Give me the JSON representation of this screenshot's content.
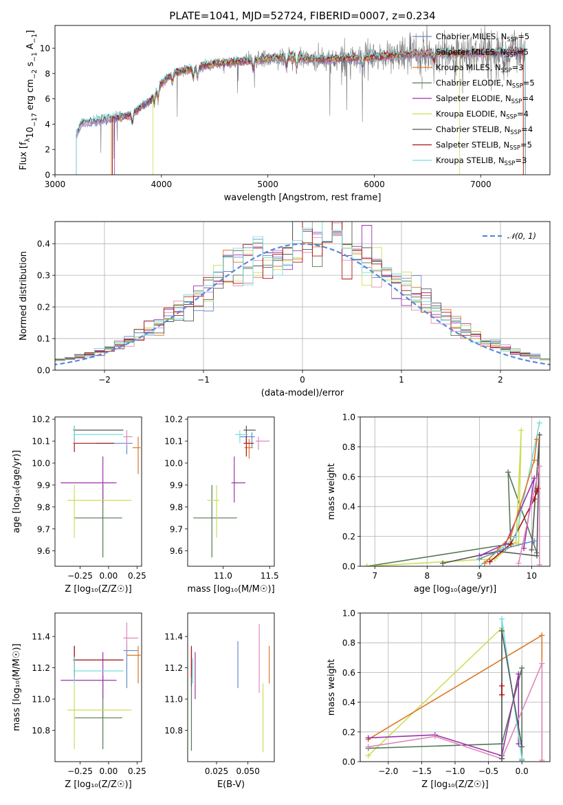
{
  "colors": {
    "Chabrier MILES": "#6688cc",
    "Salpeter MILES": "#dd88bb",
    "Kroupa MILES": "#dd7722",
    "Chabrier ELODIE": "#557755",
    "Salpeter ELODIE": "#9933aa",
    "Kroupa ELODIE": "#ccdd55",
    "Chabrier STELIB": "#555555",
    "Salpeter STELIB": "#aa1111",
    "Kroupa STELIB": "#77dddd",
    "data": "#777777",
    "normal": "#5588dd",
    "grid": "#b0b0b0"
  },
  "chart_data": [
    {
      "id": "spectrum",
      "type": "line",
      "title": "PLATE=1041, MJD=52724, FIBERID=0007, z=0.234",
      "xlabel": "wavelength [Angstrom, rest frame]",
      "ylabel_main": "Flux [f",
      "ylabel_sub": "λ",
      "ylabel_rest": "10",
      "ylabel_sup1": "−17",
      "ylabel_tail": " erg cm",
      "ylabel_sup2": "−2",
      "ylabel_tail2": " s",
      "ylabel_sup3": "−1",
      "ylabel_tail3": " A",
      "ylabel_sup4": "−1",
      "ylabel_end": "]",
      "xlim": [
        3000,
        7650
      ],
      "ylim": [
        0,
        11.8
      ],
      "xticks": [
        3000,
        4000,
        5000,
        6000,
        7000
      ],
      "yticks": [
        0,
        2,
        4,
        6,
        8,
        10
      ],
      "continuum": [
        [
          3200,
          3.1
        ],
        [
          3250,
          4.1
        ],
        [
          3400,
          4.3
        ],
        [
          3550,
          4.5
        ],
        [
          3700,
          4.7
        ],
        [
          3800,
          5.3
        ],
        [
          3900,
          5.9
        ],
        [
          3950,
          6.6
        ],
        [
          4000,
          7.2
        ],
        [
          4100,
          8.0
        ],
        [
          4300,
          8.4
        ],
        [
          4500,
          8.8
        ],
        [
          4800,
          9.0
        ],
        [
          5000,
          9.2
        ],
        [
          5200,
          9.3
        ],
        [
          5500,
          9.1
        ],
        [
          5800,
          9.2
        ],
        [
          6000,
          9.3
        ],
        [
          6300,
          9.5
        ],
        [
          6600,
          9.6
        ],
        [
          7000,
          9.6
        ],
        [
          7400,
          9.8
        ]
      ],
      "legend": [
        {
          "name": "Chabrier MILES",
          "n": "5"
        },
        {
          "name": "Salpeter MILES",
          "n": "5"
        },
        {
          "name": "Kroupa MILES",
          "n": "3"
        },
        {
          "name": "Chabrier ELODIE",
          "n": "5"
        },
        {
          "name": "Salpeter ELODIE",
          "n": "4"
        },
        {
          "name": "Kroupa ELODIE",
          "n": "4"
        },
        {
          "name": "Chabrier STELIB",
          "n": "4"
        },
        {
          "name": "Salpeter STELIB",
          "n": "5"
        },
        {
          "name": "Kroupa STELIB",
          "n": "3"
        }
      ],
      "legend_nssp": "N",
      "legend_nssp_sub": "SSP",
      "legend_location": "right"
    },
    {
      "id": "residuals",
      "type": "histogram",
      "xlabel": "(data-model)/error",
      "ylabel": "Normed distribution",
      "xlim": [
        -2.5,
        2.5
      ],
      "ylim": [
        0,
        0.47
      ],
      "xticks": [
        -2,
        -1,
        0,
        1,
        2
      ],
      "xtick_labels": [
        "−2",
        "−1",
        "0",
        "1",
        "2"
      ],
      "yticks": [
        0.0,
        0.1,
        0.2,
        0.3,
        0.4
      ],
      "ytick_labels": [
        "0.0",
        "0.1",
        "0.2",
        "0.3",
        "0.4"
      ],
      "bin_width": 0.1,
      "legend": [
        "𝒩(0, 1)"
      ],
      "legend_location": "upper right"
    },
    {
      "id": "age-vs-Z",
      "type": "errorbar",
      "xlabel": "Z [log₁₀(Z/Z☉)]",
      "ylabel": "age  [log₁₀(age/yr)]",
      "xlim": [
        -0.47,
        0.29
      ],
      "ylim": [
        9.53,
        10.21
      ],
      "xticks": [
        -0.25,
        0.0,
        0.25
      ],
      "xtick_labels": [
        "−0.25",
        "0.00",
        "0.25"
      ],
      "yticks": [
        9.6,
        9.7,
        9.8,
        9.9,
        10.0,
        10.1,
        10.2
      ],
      "ytick_labels": [
        "9.6",
        "9.7",
        "9.8",
        "9.9",
        "10.0",
        "10.1",
        "10.2"
      ],
      "points": [
        {
          "model": "Chabrier MILES",
          "x": 0.16,
          "xerr": [
            0.27,
            0.05
          ],
          "y": 10.09,
          "yerr": [
            0.05,
            0.03
          ]
        },
        {
          "model": "Salpeter MILES",
          "x": 0.16,
          "xerr": [
            0.03,
            0.05
          ],
          "y": 10.12,
          "yerr": [
            0.04,
            0.03
          ]
        },
        {
          "model": "Kroupa MILES",
          "x": 0.26,
          "xerr": [
            0.05,
            0.02
          ],
          "y": 10.07,
          "yerr": [
            0.12,
            0.05
          ]
        },
        {
          "model": "Chabrier ELODIE",
          "x": -0.05,
          "xerr": [
            0.25,
            0.17
          ],
          "y": 9.75,
          "yerr": [
            0.18,
            0.15
          ]
        },
        {
          "model": "Salpeter ELODIE",
          "x": -0.05,
          "xerr": [
            0.37,
            0.12
          ],
          "y": 9.91,
          "yerr": [
            0.09,
            0.12
          ]
        },
        {
          "model": "Kroupa ELODIE",
          "x": -0.3,
          "xerr": [
            0.06,
            0.5
          ],
          "y": 9.83,
          "yerr": [
            0.17,
            0.07
          ]
        },
        {
          "model": "Chabrier STELIB",
          "x": -0.3,
          "xerr": [
            0.01,
            0.43
          ],
          "y": 10.15,
          "yerr": [
            0.06,
            0.02
          ]
        },
        {
          "model": "Salpeter STELIB",
          "x": -0.3,
          "xerr": [
            0.01,
            0.35
          ],
          "y": 10.09,
          "yerr": [
            0.04,
            0.03
          ]
        },
        {
          "model": "Kroupa STELIB",
          "x": -0.3,
          "xerr": [
            0.01,
            0.43
          ],
          "y": 10.13,
          "yerr": [
            0.04,
            0.04
          ]
        }
      ]
    },
    {
      "id": "age-vs-mass",
      "type": "errorbar",
      "xlabel": "mass [log₁₀(M/M☉)]",
      "ylabel": "",
      "xlim": [
        10.62,
        11.55
      ],
      "ylim": [
        9.53,
        10.21
      ],
      "xticks": [
        11.0,
        11.5
      ],
      "xtick_labels": [
        "11.0",
        "11.5"
      ],
      "yticks": [
        9.6,
        9.7,
        9.8,
        9.9,
        10.0,
        10.1,
        10.2
      ],
      "ytick_labels": [
        "9.6",
        "9.7",
        "9.8",
        "9.9",
        "10.0",
        "10.1",
        "10.2"
      ],
      "points": [
        {
          "model": "Chabrier MILES",
          "x": 11.31,
          "xerr": [
            0.13,
            0.03
          ],
          "y": 10.12,
          "yerr": [
            0.05,
            0.02
          ]
        },
        {
          "model": "Salpeter MILES",
          "x": 11.38,
          "xerr": [
            0.03,
            0.12
          ],
          "y": 10.1,
          "yerr": [
            0.04,
            0.02
          ]
        },
        {
          "model": "Kroupa MILES",
          "x": 11.28,
          "xerr": [
            0.05,
            0.04
          ],
          "y": 10.07,
          "yerr": [
            0.05,
            0.04
          ]
        },
        {
          "model": "Chabrier ELODIE",
          "x": 10.88,
          "xerr": [
            0.2,
            0.27
          ],
          "y": 9.75,
          "yerr": [
            0.18,
            0.15
          ]
        },
        {
          "model": "Salpeter ELODIE",
          "x": 11.12,
          "xerr": [
            0.03,
            0.12
          ],
          "y": 9.91,
          "yerr": [
            0.09,
            0.12
          ]
        },
        {
          "model": "Kroupa ELODIE",
          "x": 10.93,
          "xerr": [
            0.1,
            0.03
          ],
          "y": 9.83,
          "yerr": [
            0.17,
            0.07
          ]
        },
        {
          "model": "Chabrier STELIB",
          "x": 11.25,
          "xerr": [
            0.03,
            0.1
          ],
          "y": 10.15,
          "yerr": [
            0.06,
            0.02
          ]
        },
        {
          "model": "Salpeter STELIB",
          "x": 11.25,
          "xerr": [
            0.03,
            0.08
          ],
          "y": 10.09,
          "yerr": [
            0.06,
            0.03
          ]
        },
        {
          "model": "Kroupa STELIB",
          "x": 11.18,
          "xerr": [
            0.05,
            0.09
          ],
          "y": 10.13,
          "yerr": [
            0.04,
            0.02
          ]
        }
      ]
    },
    {
      "id": "weight-vs-age",
      "type": "line",
      "xlabel": "age  [log₁₀(age/yr)]",
      "ylabel": "mass weight",
      "xlim": [
        6.72,
        10.35
      ],
      "ylim": [
        0,
        1.0
      ],
      "xticks": [
        7,
        8,
        9,
        10
      ],
      "xtick_labels": [
        "7",
        "8",
        "9",
        "10"
      ],
      "yticks": [
        0.0,
        0.2,
        0.4,
        0.6,
        0.8,
        1.0
      ],
      "ytick_labels": [
        "0.0",
        "0.2",
        "0.4",
        "0.6",
        "0.8",
        "1.0"
      ],
      "series": [
        {
          "model": "Chabrier ELODIE",
          "x": [
            6.85,
            9.6,
            9.55,
            10.1
          ],
          "y": [
            0.0,
            0.15,
            0.63,
            0.09
          ]
        },
        {
          "model": "Kroupa ELODIE",
          "x": [
            6.85,
            9.3,
            9.7,
            9.8,
            9.75
          ],
          "y": [
            0.0,
            0.05,
            0.16,
            0.91,
            0.15
          ]
        },
        {
          "model": "Chabrier STELIB",
          "x": [
            8.3,
            9.35,
            10.1,
            10.15,
            10.0
          ],
          "y": [
            0.02,
            0.1,
            0.07,
            0.88,
            0.11
          ]
        },
        {
          "model": "Salpeter STELIB",
          "x": [
            9.2,
            9.6,
            10.05,
            10.1,
            10.12
          ],
          "y": [
            0.03,
            0.15,
            0.45,
            0.5,
            0.52
          ]
        },
        {
          "model": "Kroupa STELIB",
          "x": [
            9.0,
            9.7,
            10.15
          ],
          "y": [
            0.0,
            0.2,
            0.96
          ]
        },
        {
          "model": "Salpeter ELODIE",
          "x": [
            9.0,
            9.5,
            10.05,
            9.85
          ],
          "y": [
            0.07,
            0.15,
            0.59,
            0.12
          ]
        },
        {
          "model": "Kroupa MILES",
          "x": [
            9.1,
            9.6,
            10.05,
            10.1
          ],
          "y": [
            0.02,
            0.2,
            0.71,
            0.85
          ]
        },
        {
          "model": "Salpeter MILES",
          "x": [
            9.75,
            10.15,
            10.15
          ],
          "y": [
            0.02,
            0.67,
            0.01
          ]
        },
        {
          "model": "Chabrier MILES",
          "x": [
            9.0,
            9.5,
            10.05
          ],
          "y": [
            0.05,
            0.12,
            0.17
          ]
        }
      ]
    },
    {
      "id": "mass-vs-Z",
      "type": "errorbar",
      "xlabel": "Z [log₁₀(Z/Z☉)]",
      "ylabel": "mass [log₁₀(M/M☉)]",
      "xlim": [
        -0.47,
        0.29
      ],
      "ylim": [
        10.6,
        11.55
      ],
      "xticks": [
        -0.25,
        0.0,
        0.25
      ],
      "xtick_labels": [
        "−0.25",
        "0.00",
        "0.25"
      ],
      "yticks": [
        10.8,
        11.0,
        11.2,
        11.4
      ],
      "ytick_labels": [
        "10.8",
        "11.0",
        "11.2",
        "11.4"
      ],
      "points": [
        {
          "model": "Chabrier MILES",
          "x": 0.16,
          "xerr": [
            0.03,
            0.1
          ],
          "y": 11.31,
          "yerr": [
            0.24,
            0.06
          ]
        },
        {
          "model": "Salpeter MILES",
          "x": 0.16,
          "xerr": [
            0.03,
            0.1
          ],
          "y": 11.39,
          "yerr": [
            0.08,
            0.1
          ]
        },
        {
          "model": "Kroupa MILES",
          "x": 0.26,
          "xerr": [
            0.1,
            0.02
          ],
          "y": 11.28,
          "yerr": [
            0.18,
            0.06
          ]
        },
        {
          "model": "Chabrier ELODIE",
          "x": -0.05,
          "xerr": [
            0.25,
            0.17
          ],
          "y": 10.88,
          "yerr": [
            0.2,
            0.27
          ]
        },
        {
          "model": "Salpeter ELODIE",
          "x": -0.05,
          "xerr": [
            0.37,
            0.12
          ],
          "y": 11.12,
          "yerr": [
            0.12,
            0.18
          ]
        },
        {
          "model": "Kroupa ELODIE",
          "x": -0.3,
          "xerr": [
            0.06,
            0.5
          ],
          "y": 10.93,
          "yerr": [
            0.25,
            0.17
          ]
        },
        {
          "model": "Chabrier STELIB",
          "x": -0.3,
          "xerr": [
            0.01,
            0.43
          ],
          "y": 11.25,
          "yerr": [
            0.13,
            0.09
          ]
        },
        {
          "model": "Salpeter STELIB",
          "x": -0.3,
          "xerr": [
            0.01,
            0.43
          ],
          "y": 11.25,
          "yerr": [
            0.1,
            0.09
          ]
        },
        {
          "model": "Kroupa STELIB",
          "x": -0.3,
          "xerr": [
            0.01,
            0.43
          ],
          "y": 11.18,
          "yerr": [
            0.08,
            0.09
          ]
        }
      ]
    },
    {
      "id": "mass-vs-ebv",
      "type": "errorbar",
      "xlabel": "E(B-V)",
      "ylabel": "",
      "xlim": [
        0.002,
        0.071
      ],
      "ylim": [
        10.6,
        11.55
      ],
      "xticks": [
        0.025,
        0.05
      ],
      "xtick_labels": [
        "0.025",
        "0.050"
      ],
      "yticks": [
        10.8,
        11.0,
        11.2,
        11.4
      ],
      "ytick_labels": [
        "10.8",
        "11.0",
        "11.2",
        "11.4"
      ],
      "points": [
        {
          "model": "Chabrier MILES",
          "x": 0.042,
          "y": 11.22,
          "yerr": [
            0.15,
            0.15
          ]
        },
        {
          "model": "Salpeter MILES",
          "x": 0.059,
          "y": 11.26,
          "yerr": [
            0.22,
            0.22
          ]
        },
        {
          "model": "Kroupa MILES",
          "x": 0.067,
          "y": 11.22,
          "yerr": [
            0.12,
            0.12
          ]
        },
        {
          "model": "Chabrier ELODIE",
          "x": 0.005,
          "y": 10.97,
          "yerr": [
            0.3,
            0.3
          ]
        },
        {
          "model": "Salpeter ELODIE",
          "x": 0.008,
          "y": 11.12,
          "yerr": [
            0.12,
            0.18
          ]
        },
        {
          "model": "Kroupa ELODIE",
          "x": 0.062,
          "y": 10.88,
          "yerr": [
            0.22,
            0.22
          ]
        },
        {
          "model": "Chabrier STELIB",
          "x": 0.005,
          "y": 11.2,
          "yerr": [
            0.12,
            0.12
          ]
        },
        {
          "model": "Salpeter STELIB",
          "x": 0.005,
          "y": 11.24,
          "yerr": [
            0.1,
            0.1
          ]
        },
        {
          "model": "Kroupa STELIB",
          "x": 0.006,
          "y": 11.18,
          "yerr": [
            0.08,
            0.08
          ]
        }
      ]
    },
    {
      "id": "weight-vs-Z",
      "type": "line",
      "xlabel": "Z [log₁₀(Z/Z☉)]",
      "ylabel": "mass weight",
      "xlim": [
        -2.42,
        0.42
      ],
      "ylim": [
        0,
        1.0
      ],
      "xticks": [
        -2.0,
        -1.5,
        -1.0,
        -0.5,
        0.0
      ],
      "xtick_labels": [
        "−2.0",
        "−1.5",
        "−1.0",
        "−0.5",
        "0.0"
      ],
      "yticks": [
        0.0,
        0.2,
        0.4,
        0.6,
        0.8,
        1.0
      ],
      "ytick_labels": [
        "0.0",
        "0.2",
        "0.4",
        "0.6",
        "0.8",
        "1.0"
      ],
      "series": [
        {
          "model": "Kroupa ELODIE",
          "x": [
            -2.3,
            -0.3,
            -0.3
          ],
          "y": [
            0.04,
            0.9,
            0.0
          ]
        },
        {
          "model": "Kroupa MILES",
          "x": [
            -2.3,
            0.3,
            0.3
          ],
          "y": [
            0.15,
            0.85,
            0.0
          ]
        },
        {
          "model": "Chabrier ELODIE",
          "x": [
            -2.3,
            -0.3,
            0.0,
            0.0
          ],
          "y": [
            0.09,
            0.12,
            0.63,
            0.01
          ]
        },
        {
          "model": "Salpeter ELODIE",
          "x": [
            -2.3,
            -1.3,
            -0.3,
            -0.05,
            -0.05
          ],
          "y": [
            0.16,
            0.18,
            0.04,
            0.59,
            0.12
          ]
        },
        {
          "model": "Salpeter MILES",
          "x": [
            -2.3,
            -1.3,
            -0.3,
            0.3,
            0.3
          ],
          "y": [
            0.1,
            0.17,
            0.02,
            0.66,
            0.01
          ]
        },
        {
          "model": "Kroupa STELIB",
          "x": [
            -0.3,
            -0.3,
            0.0
          ],
          "y": [
            0.0,
            0.96,
            0.02
          ]
        },
        {
          "model": "Chabrier STELIB",
          "x": [
            -0.3,
            -0.3,
            0.0
          ],
          "y": [
            0.02,
            0.88,
            0.1
          ]
        },
        {
          "model": "Salpeter STELIB",
          "x": [
            -0.3,
            -0.3
          ],
          "y": [
            0.45,
            0.51
          ]
        }
      ]
    }
  ]
}
